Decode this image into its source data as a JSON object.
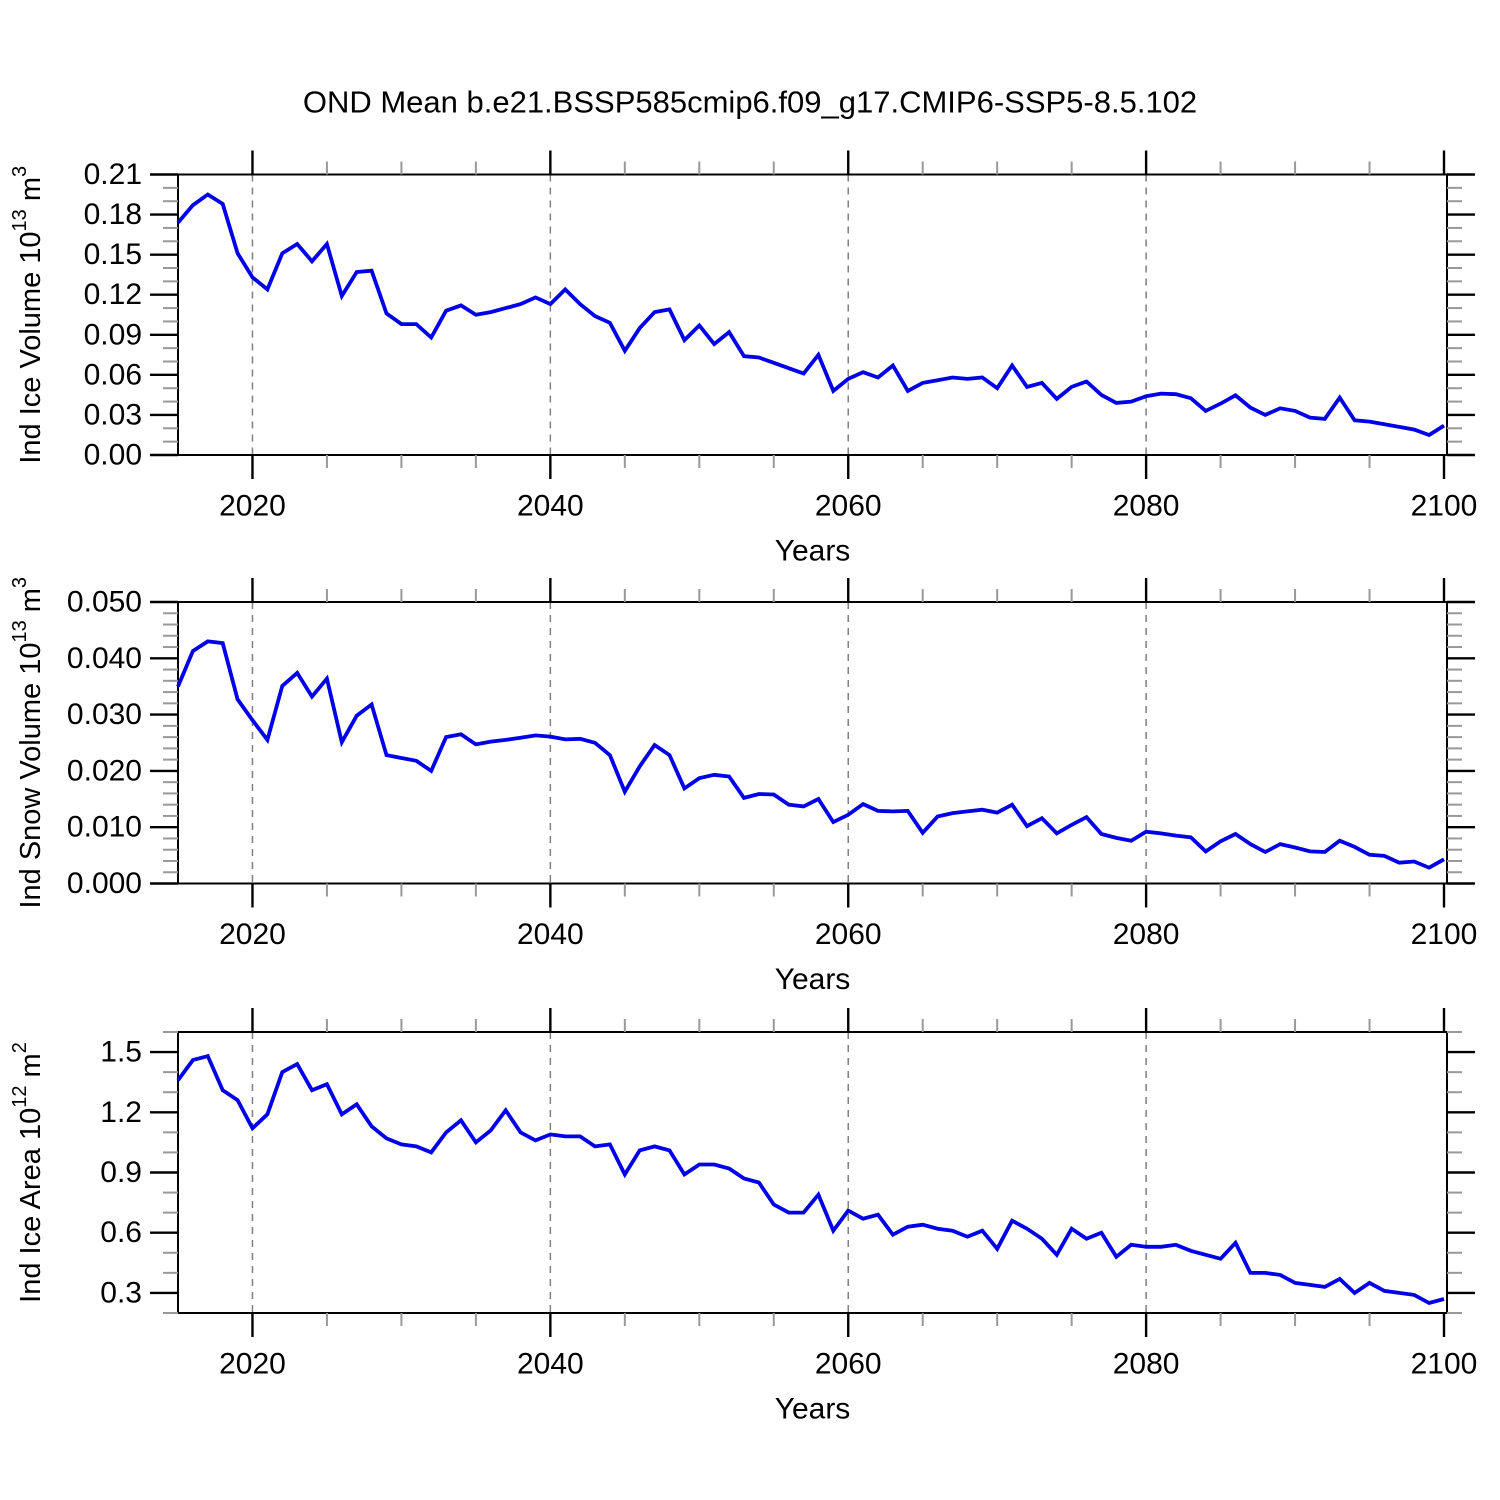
{
  "page": {
    "title": "OND Mean b.e21.BSSP585cmip6.f09_g17.CMIP6-SSP5-8.5.102",
    "background": "#ffffff"
  },
  "colors": {
    "line": "#0000e8",
    "axis": "#000000",
    "major_tick": "#000000",
    "minor_tick": "#999999",
    "gridline": "#808080",
    "text": "#000000"
  },
  "years": [
    2015,
    2016,
    2017,
    2018,
    2019,
    2020,
    2021,
    2022,
    2023,
    2024,
    2025,
    2026,
    2027,
    2028,
    2029,
    2030,
    2031,
    2032,
    2033,
    2034,
    2035,
    2036,
    2037,
    2038,
    2039,
    2040,
    2041,
    2042,
    2043,
    2044,
    2045,
    2046,
    2047,
    2048,
    2049,
    2050,
    2051,
    2052,
    2053,
    2054,
    2055,
    2056,
    2057,
    2058,
    2059,
    2060,
    2061,
    2062,
    2063,
    2064,
    2065,
    2066,
    2067,
    2068,
    2069,
    2070,
    2071,
    2072,
    2073,
    2074,
    2075,
    2076,
    2077,
    2078,
    2079,
    2080,
    2081,
    2082,
    2083,
    2084,
    2085,
    2086,
    2087,
    2088,
    2089,
    2090,
    2091,
    2092,
    2093,
    2094,
    2095,
    2096,
    2097,
    2098,
    2099,
    2100
  ],
  "chart_data": [
    {
      "type": "line",
      "id": "ice-volume",
      "xlabel": "Years",
      "ylabel": "Ind Ice Volume 10^13 m^3",
      "x_range": [
        2015,
        2100
      ],
      "x_major_ticks": [
        2020,
        2040,
        2060,
        2080,
        2100
      ],
      "x_minor_step": 5,
      "x_gridlines": [
        2020,
        2040,
        2060,
        2080
      ],
      "ylim": [
        0,
        0.21
      ],
      "y_major_ticks": [
        0.0,
        0.03,
        0.06,
        0.09,
        0.12,
        0.15,
        0.18,
        0.21
      ],
      "y_tick_labels": [
        "0.00",
        "0.03",
        "0.06",
        "0.09",
        "0.12",
        "0.15",
        "0.18",
        "0.21"
      ],
      "y_minor_step": 0.01,
      "grid": "x-dashed",
      "legend": "none",
      "values": [
        0.174,
        0.187,
        0.195,
        0.188,
        0.151,
        0.133,
        0.124,
        0.151,
        0.158,
        0.145,
        0.158,
        0.119,
        0.137,
        0.138,
        0.106,
        0.098,
        0.098,
        0.088,
        0.108,
        0.112,
        0.105,
        0.107,
        0.11,
        0.113,
        0.118,
        0.113,
        0.124,
        0.113,
        0.104,
        0.099,
        0.078,
        0.095,
        0.107,
        0.109,
        0.086,
        0.097,
        0.083,
        0.092,
        0.074,
        0.073,
        0.069,
        0.065,
        0.061,
        0.075,
        0.048,
        0.057,
        0.062,
        0.058,
        0.067,
        0.048,
        0.054,
        0.056,
        0.058,
        0.057,
        0.058,
        0.05,
        0.067,
        0.051,
        0.054,
        0.042,
        0.051,
        0.055,
        0.045,
        0.039,
        0.04,
        0.044,
        0.046,
        0.0455,
        0.0425,
        0.033,
        0.0385,
        0.0447,
        0.0355,
        0.03,
        0.035,
        0.033,
        0.028,
        0.027,
        0.043,
        0.026,
        0.025,
        0.023,
        0.021,
        0.019,
        0.015,
        0.022
      ]
    },
    {
      "type": "line",
      "id": "snow-volume",
      "xlabel": "Years",
      "ylabel": "Ind Snow Volume 10^13 m^3",
      "x_range": [
        2015,
        2100
      ],
      "x_major_ticks": [
        2020,
        2040,
        2060,
        2080,
        2100
      ],
      "x_minor_step": 5,
      "x_gridlines": [
        2020,
        2040,
        2060,
        2080
      ],
      "ylim": [
        0,
        0.05
      ],
      "y_major_ticks": [
        0.0,
        0.01,
        0.02,
        0.03,
        0.04,
        0.05
      ],
      "y_tick_labels": [
        "0.000",
        "0.010",
        "0.020",
        "0.030",
        "0.040",
        "0.050"
      ],
      "y_minor_step": 0.002,
      "grid": "x-dashed",
      "legend": "none",
      "values": [
        0.035,
        0.0413,
        0.043,
        0.0427,
        0.0327,
        0.029,
        0.0255,
        0.0351,
        0.0374,
        0.0332,
        0.0364,
        0.0251,
        0.0298,
        0.0318,
        0.0228,
        0.0223,
        0.0218,
        0.02,
        0.026,
        0.0265,
        0.0247,
        0.0252,
        0.0255,
        0.0259,
        0.0263,
        0.0261,
        0.0256,
        0.0257,
        0.025,
        0.0228,
        0.0163,
        0.0208,
        0.0246,
        0.0228,
        0.0169,
        0.0187,
        0.0193,
        0.019,
        0.0152,
        0.0159,
        0.0158,
        0.014,
        0.0137,
        0.015,
        0.0109,
        0.0122,
        0.0141,
        0.0129,
        0.0128,
        0.0129,
        0.009,
        0.0119,
        0.0125,
        0.0128,
        0.0131,
        0.0126,
        0.014,
        0.0102,
        0.0116,
        0.0089,
        0.0104,
        0.0118,
        0.0088,
        0.0081,
        0.0076,
        0.0092,
        0.0089,
        0.0085,
        0.0082,
        0.0057,
        0.0075,
        0.0088,
        0.007,
        0.0056,
        0.007,
        0.0064,
        0.0057,
        0.0056,
        0.0076,
        0.0065,
        0.0051,
        0.0049,
        0.0037,
        0.0039,
        0.0028,
        0.0043
      ]
    },
    {
      "type": "line",
      "id": "ice-area",
      "xlabel": "Years",
      "ylabel": "Ind Ice Area 10^12 m^2",
      "x_range": [
        2015,
        2100
      ],
      "x_major_ticks": [
        2020,
        2040,
        2060,
        2080,
        2100
      ],
      "x_minor_step": 5,
      "x_gridlines": [
        2020,
        2040,
        2060,
        2080
      ],
      "ylim": [
        0.2,
        1.6
      ],
      "y_major_ticks": [
        0.3,
        0.6,
        0.9,
        1.2,
        1.5
      ],
      "y_tick_labels": [
        "0.3",
        "0.6",
        "0.9",
        "1.2",
        "1.5"
      ],
      "y_minor_step": 0.1,
      "grid": "x-dashed",
      "legend": "none",
      "values": [
        1.36,
        1.46,
        1.48,
        1.31,
        1.26,
        1.12,
        1.19,
        1.4,
        1.44,
        1.31,
        1.34,
        1.19,
        1.24,
        1.13,
        1.07,
        1.04,
        1.03,
        1.0,
        1.1,
        1.16,
        1.05,
        1.11,
        1.21,
        1.1,
        1.06,
        1.09,
        1.08,
        1.08,
        1.03,
        1.04,
        0.89,
        1.01,
        1.03,
        1.01,
        0.89,
        0.94,
        0.94,
        0.92,
        0.87,
        0.85,
        0.74,
        0.7,
        0.7,
        0.79,
        0.61,
        0.71,
        0.67,
        0.69,
        0.59,
        0.63,
        0.64,
        0.62,
        0.61,
        0.58,
        0.61,
        0.52,
        0.66,
        0.62,
        0.57,
        0.49,
        0.62,
        0.57,
        0.6,
        0.48,
        0.54,
        0.53,
        0.53,
        0.54,
        0.51,
        0.49,
        0.47,
        0.55,
        0.4,
        0.4,
        0.39,
        0.35,
        0.34,
        0.33,
        0.37,
        0.3,
        0.35,
        0.31,
        0.3,
        0.29,
        0.25,
        0.27
      ]
    }
  ]
}
